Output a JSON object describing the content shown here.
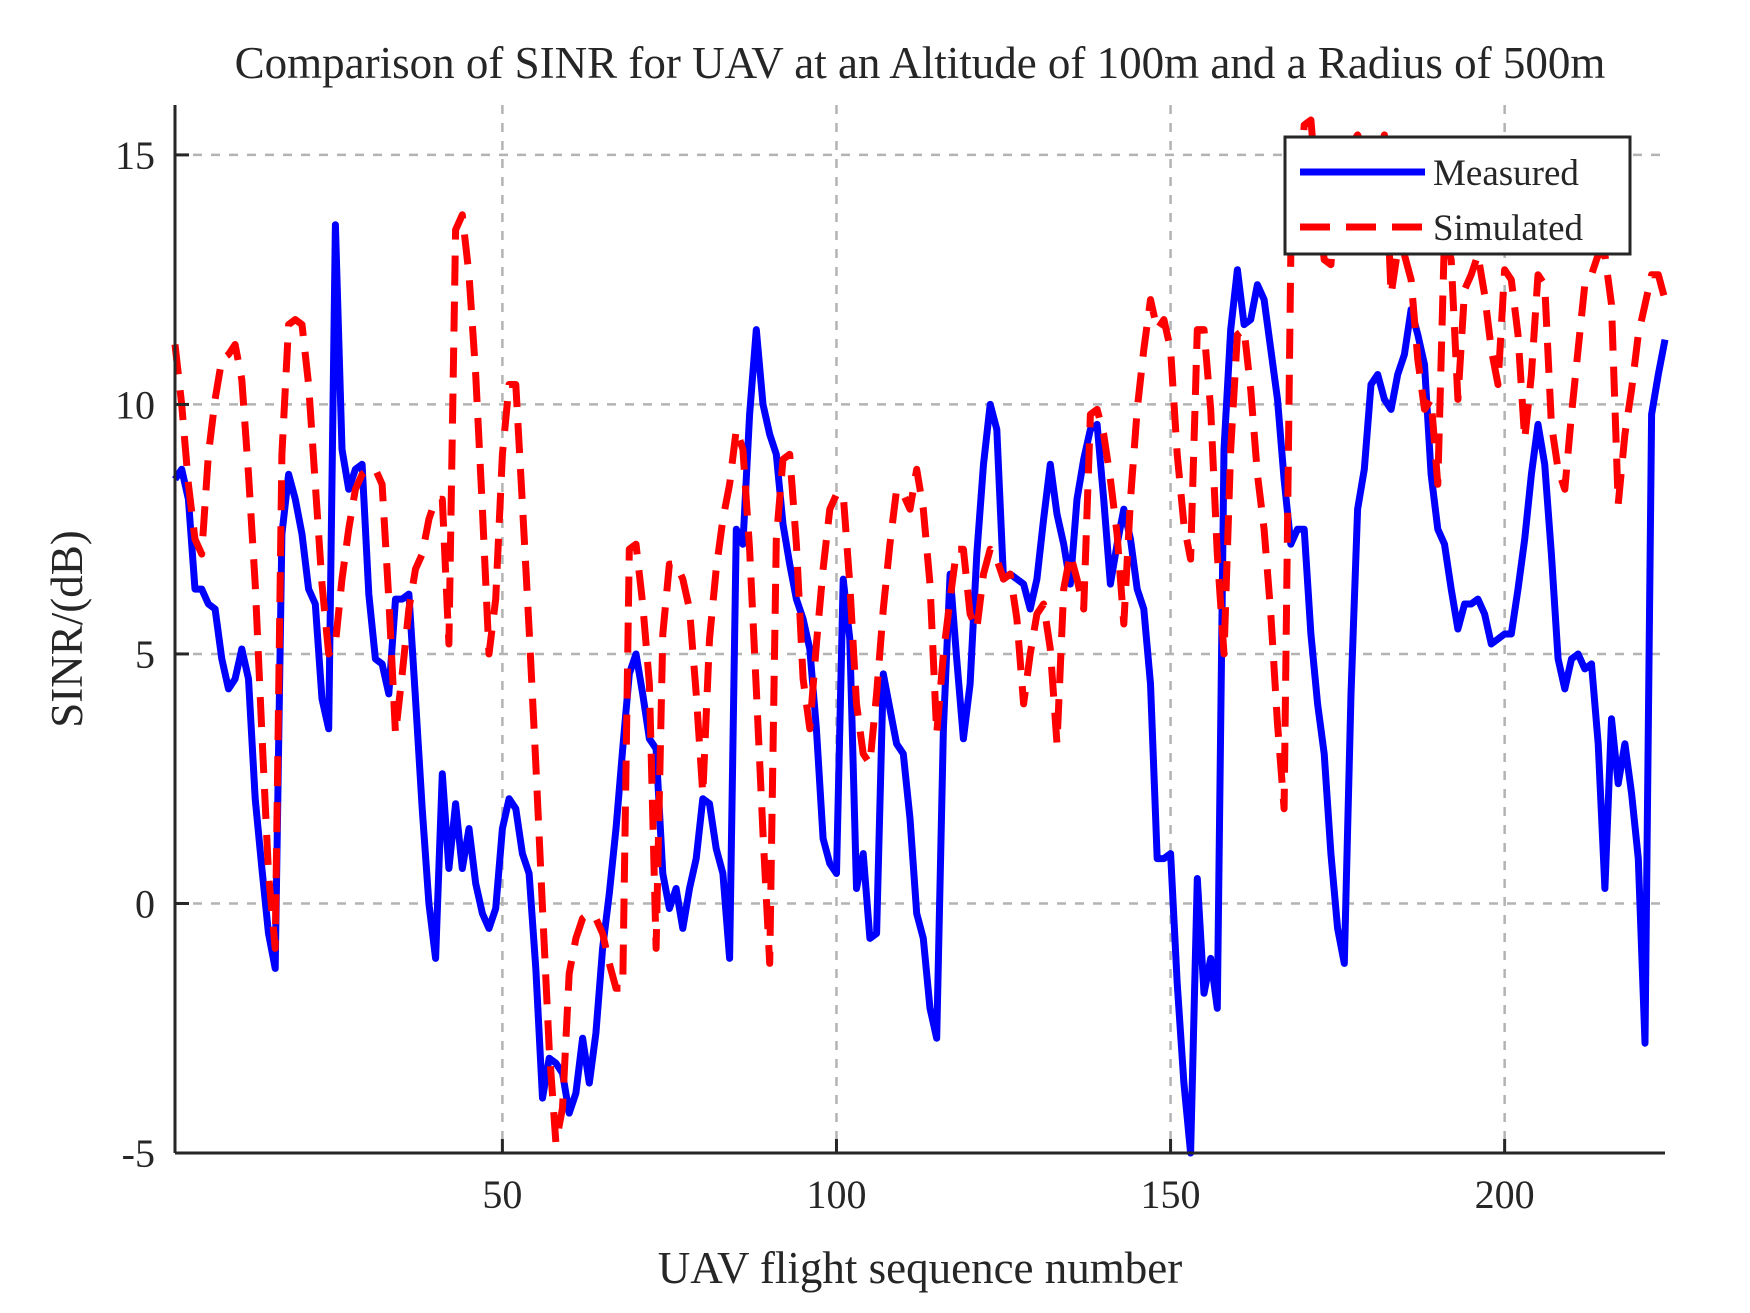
{
  "chart_data": {
    "type": "line",
    "title": "Comparison of SINR for UAV at an Altitude of 100m and a Radius of 500m",
    "xlabel": "UAV flight sequence number",
    "ylabel": "SINR/(dB)",
    "xlim": [
      1,
      224
    ],
    "ylim": [
      -5,
      16
    ],
    "xticks": [
      50,
      100,
      150,
      200
    ],
    "yticks": [
      -5,
      0,
      5,
      10,
      15
    ],
    "xtick_labels": [
      "50",
      "100",
      "150",
      "200"
    ],
    "ytick_labels": [
      "-5",
      "0",
      "5",
      "10",
      "15"
    ],
    "grid": true,
    "legend_position": "top-right",
    "series": [
      {
        "name": "Measured",
        "color": "#0000ff",
        "style": "solid",
        "x": [
          1,
          2,
          3,
          4,
          5,
          6,
          7,
          8,
          9,
          10,
          11,
          12,
          13,
          14,
          15,
          16,
          17,
          18,
          19,
          20,
          21,
          22,
          23,
          24,
          25,
          26,
          27,
          28,
          29,
          30,
          31,
          32,
          33,
          34,
          35,
          36,
          37,
          38,
          39,
          40,
          41,
          42,
          43,
          44,
          45,
          46,
          47,
          48,
          49,
          50,
          51,
          52,
          53,
          54,
          55,
          56,
          57,
          58,
          59,
          60,
          61,
          62,
          63,
          64,
          65,
          66,
          67,
          68,
          69,
          70,
          71,
          72,
          73,
          74,
          75,
          76,
          77,
          78,
          79,
          80,
          81,
          82,
          83,
          84,
          85,
          86,
          87,
          88,
          89,
          90,
          91,
          92,
          93,
          94,
          95,
          96,
          97,
          98,
          99,
          100,
          101,
          102,
          103,
          104,
          105,
          106,
          107,
          108,
          109,
          110,
          111,
          112,
          113,
          114,
          115,
          116,
          117,
          118,
          119,
          120,
          121,
          122,
          123,
          124,
          125,
          126,
          127,
          128,
          129,
          130,
          131,
          132,
          133,
          134,
          135,
          136,
          137,
          138,
          139,
          140,
          141,
          142,
          143,
          144,
          145,
          146,
          147,
          148,
          149,
          150,
          151,
          152,
          153,
          154,
          155,
          156,
          157,
          158,
          159,
          160,
          161,
          162,
          163,
          164,
          165,
          166,
          167,
          168,
          169,
          170,
          171,
          172,
          173,
          174,
          175,
          176,
          177,
          178,
          179,
          180,
          181,
          182,
          183,
          184,
          185,
          186,
          187,
          188,
          189,
          190,
          191,
          192,
          193,
          194,
          195,
          196,
          197,
          198,
          199,
          200,
          201,
          202,
          203,
          204,
          205,
          206,
          207,
          208,
          209,
          210,
          211,
          212,
          213,
          214,
          215,
          216,
          217,
          218,
          219,
          220,
          221,
          222,
          223,
          224
        ],
        "y": [
          8.5,
          8.7,
          8.1,
          6.3,
          6.3,
          6.0,
          5.9,
          4.9,
          4.3,
          4.5,
          5.1,
          4.5,
          2.1,
          0.7,
          -0.6,
          -1.3,
          7.4,
          8.6,
          8.1,
          7.4,
          6.3,
          6.0,
          4.1,
          3.5,
          13.6,
          9.1,
          8.3,
          8.7,
          8.8,
          6.2,
          4.9,
          4.8,
          4.2,
          6.1,
          6.1,
          6.2,
          4.1,
          1.9,
          0.0,
          -1.1,
          2.6,
          0.7,
          2.0,
          0.7,
          1.5,
          0.4,
          -0.2,
          -0.5,
          -0.1,
          1.5,
          2.1,
          1.9,
          1.0,
          0.6,
          -1.3,
          -3.9,
          -3.1,
          -3.2,
          -3.4,
          -4.2,
          -3.8,
          -2.7,
          -3.6,
          -2.6,
          -0.9,
          0.2,
          1.5,
          3.1,
          4.6,
          5.0,
          4.2,
          3.3,
          3.1,
          0.6,
          -0.1,
          0.3,
          -0.5,
          0.3,
          0.9,
          2.1,
          2.0,
          1.1,
          0.6,
          -1.1,
          7.5,
          7.2,
          9.8,
          11.5,
          10.0,
          9.4,
          9.0,
          7.6,
          6.8,
          6.1,
          5.7,
          5.1,
          3.5,
          1.3,
          0.8,
          0.6,
          6.5,
          5.3,
          0.3,
          1.0,
          -0.7,
          -0.6,
          4.6,
          3.9,
          3.2,
          3.0,
          1.7,
          -0.2,
          -0.7,
          -2.1,
          -2.7,
          3.5,
          6.6,
          4.9,
          3.3,
          4.4,
          7.0,
          8.8,
          10.0,
          9.5,
          6.5,
          6.6,
          6.5,
          6.4,
          5.9,
          6.5,
          7.7,
          8.8,
          7.8,
          7.2,
          6.4,
          8.1,
          8.9,
          9.5,
          9.6,
          8.1,
          6.4,
          7.2,
          7.9,
          7.3,
          6.3,
          5.9,
          4.4,
          0.9,
          0.9,
          1.0,
          -1.6,
          -3.6,
          -5.0,
          0.5,
          -1.8,
          -1.1,
          -2.1,
          9.1,
          11.5,
          12.7,
          11.6,
          11.7,
          12.4,
          12.1,
          11.1,
          10.1,
          8.5,
          7.2,
          7.5,
          7.5,
          5.4,
          4.0,
          3.0,
          1.0,
          -0.5,
          -1.2,
          4.2,
          7.9,
          8.7,
          10.4,
          10.6,
          10.1,
          9.9,
          10.6,
          11.0,
          11.9,
          11.4,
          10.8,
          8.6,
          7.5,
          7.2,
          6.3,
          5.5,
          6.0,
          6.0,
          6.1,
          5.8,
          5.2,
          5.3,
          5.4,
          5.4,
          6.3,
          7.3,
          8.6,
          9.6,
          8.8,
          7.0,
          4.9,
          4.3,
          4.9,
          5.0,
          4.7,
          4.8,
          3.2,
          0.3,
          3.7,
          2.4,
          3.2,
          2.2,
          0.9,
          -2.8,
          9.8,
          10.6,
          11.3
        ]
      },
      {
        "name": "Simulated",
        "color": "#ff0000",
        "style": "dashed",
        "x": [
          1,
          2,
          3,
          4,
          5,
          6,
          7,
          8,
          9,
          10,
          11,
          12,
          13,
          14,
          15,
          16,
          17,
          18,
          19,
          20,
          21,
          22,
          23,
          24,
          25,
          26,
          27,
          28,
          29,
          30,
          31,
          32,
          33,
          34,
          35,
          36,
          37,
          38,
          39,
          40,
          41,
          42,
          43,
          44,
          45,
          46,
          47,
          48,
          49,
          50,
          51,
          52,
          53,
          54,
          55,
          56,
          57,
          58,
          59,
          60,
          61,
          62,
          63,
          64,
          65,
          66,
          67,
          68,
          69,
          70,
          71,
          72,
          73,
          74,
          75,
          76,
          77,
          78,
          79,
          80,
          81,
          82,
          83,
          84,
          85,
          86,
          87,
          88,
          89,
          90,
          91,
          92,
          93,
          94,
          95,
          96,
          97,
          98,
          99,
          100,
          101,
          102,
          103,
          104,
          105,
          106,
          107,
          108,
          109,
          110,
          111,
          112,
          113,
          114,
          115,
          116,
          117,
          118,
          119,
          120,
          121,
          122,
          123,
          124,
          125,
          126,
          127,
          128,
          129,
          130,
          131,
          132,
          133,
          134,
          135,
          136,
          137,
          138,
          139,
          140,
          141,
          142,
          143,
          144,
          145,
          146,
          147,
          148,
          149,
          150,
          151,
          152,
          153,
          154,
          155,
          156,
          157,
          158,
          159,
          160,
          161,
          162,
          163,
          164,
          165,
          166,
          167,
          168,
          169,
          170,
          171,
          172,
          173,
          174,
          175,
          176,
          177,
          178,
          179,
          180,
          181,
          182,
          183,
          184,
          185,
          186,
          187,
          188,
          189,
          190,
          191,
          192,
          193,
          194,
          195,
          196,
          197,
          198,
          199,
          200,
          201,
          202,
          203,
          204,
          205,
          206,
          207,
          208,
          209,
          210,
          211,
          212,
          213,
          214,
          215,
          216,
          217,
          218,
          219,
          220,
          221,
          222,
          223,
          224
        ],
        "y": [
          11.2,
          10.0,
          8.4,
          7.3,
          7.0,
          9.0,
          10.1,
          10.9,
          11.0,
          11.2,
          10.5,
          8.6,
          6.4,
          3.4,
          0.6,
          -0.9,
          9.0,
          11.6,
          11.7,
          11.6,
          10.4,
          8.4,
          6.4,
          5.0,
          5.2,
          6.5,
          7.5,
          8.3,
          8.6,
          8.7,
          8.7,
          8.4,
          6.1,
          3.4,
          4.6,
          5.9,
          6.7,
          7.0,
          7.7,
          8.1,
          8.1,
          5.2,
          13.5,
          13.8,
          12.6,
          10.6,
          7.9,
          5.0,
          6.1,
          9.0,
          10.4,
          10.4,
          8.0,
          5.5,
          2.8,
          -0.1,
          -2.9,
          -4.8,
          -4.1,
          -1.4,
          -0.7,
          -0.3,
          -0.2,
          -0.3,
          -0.6,
          -1.2,
          -1.7,
          -1.7,
          7.1,
          7.2,
          6.0,
          4.4,
          -0.9,
          5.4,
          6.8,
          6.8,
          6.5,
          5.9,
          4.2,
          2.2,
          5.3,
          6.7,
          7.7,
          8.4,
          9.5,
          9.1,
          7.1,
          4.3,
          1.4,
          -1.2,
          7.3,
          8.9,
          9.0,
          7.2,
          4.5,
          3.5,
          5.2,
          6.7,
          7.9,
          8.2,
          8.2,
          6.4,
          4.0,
          3.0,
          2.8,
          4.2,
          5.9,
          7.2,
          8.3,
          8.2,
          7.9,
          8.7,
          7.9,
          6.4,
          3.4,
          5.0,
          6.1,
          7.1,
          7.1,
          5.8,
          5.5,
          6.6,
          7.1,
          6.9,
          6.5,
          6.6,
          5.7,
          4.0,
          5.0,
          5.8,
          6.0,
          5.1,
          3.2,
          6.3,
          7.0,
          6.5,
          5.9,
          9.8,
          9.9,
          9.4,
          8.5,
          7.4,
          5.6,
          8.1,
          9.9,
          11.1,
          12.1,
          11.5,
          11.7,
          11.1,
          9.0,
          7.6,
          6.9,
          11.5,
          11.5,
          9.9,
          7.0,
          5.0,
          9.1,
          11.4,
          11.5,
          10.3,
          8.6,
          7.5,
          5.8,
          3.6,
          1.9,
          13.0,
          13.4,
          15.6,
          15.7,
          14.1,
          12.9,
          12.8,
          14.6,
          15.2,
          15.2,
          15.4,
          15.1,
          14.6,
          15.0,
          15.4,
          12.2,
          13.1,
          13.0,
          12.5,
          10.9,
          9.9,
          10.1,
          8.4,
          13.4,
          12.9,
          10.1,
          12.3,
          12.6,
          13.0,
          12.2,
          11.1,
          10.4,
          12.7,
          12.5,
          11.4,
          9.3,
          10.6,
          12.6,
          12.4,
          9.6,
          8.7,
          8.3,
          9.8,
          11.1,
          12.4,
          12.6,
          13.0,
          13.0,
          12.0,
          8.0,
          9.4,
          10.3,
          11.4,
          12.0,
          12.6,
          12.6,
          12.1
        ]
      }
    ]
  }
}
